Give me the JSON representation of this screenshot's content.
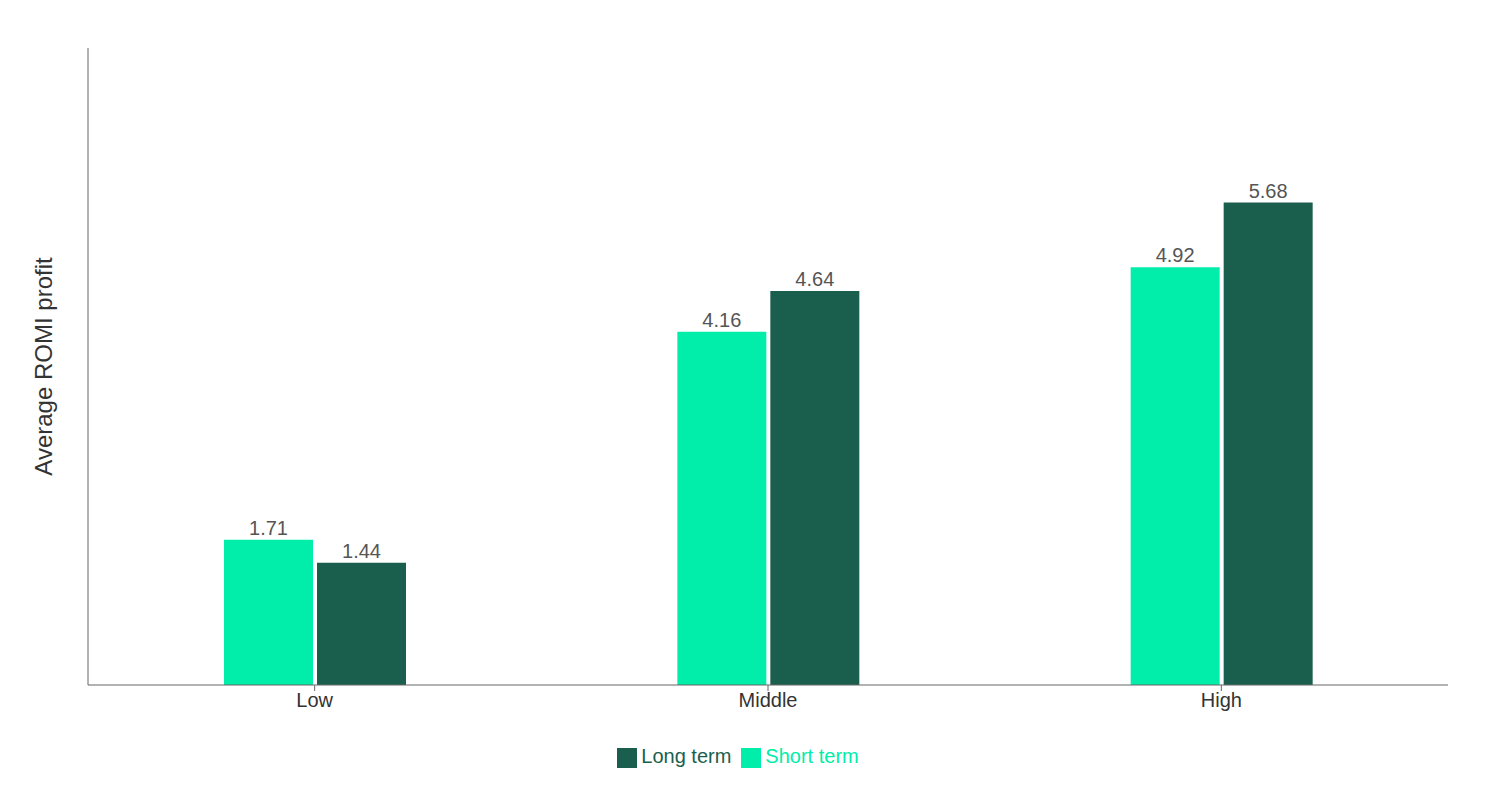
{
  "chart_data": {
    "type": "bar",
    "ylabel": "Average ROMI profit",
    "categories": [
      "Low",
      "Middle",
      "High"
    ],
    "series": [
      {
        "name": "Short term",
        "color": "#00EDAA",
        "values": [
          1.71,
          4.16,
          4.92
        ]
      },
      {
        "name": "Long term",
        "color": "#1A5E4E",
        "values": [
          1.44,
          4.64,
          5.68
        ]
      }
    ],
    "ylim": [
      0,
      7.5
    ],
    "grid": false,
    "legend": "bottom",
    "data_labels": true,
    "tick_labels": "x"
  }
}
